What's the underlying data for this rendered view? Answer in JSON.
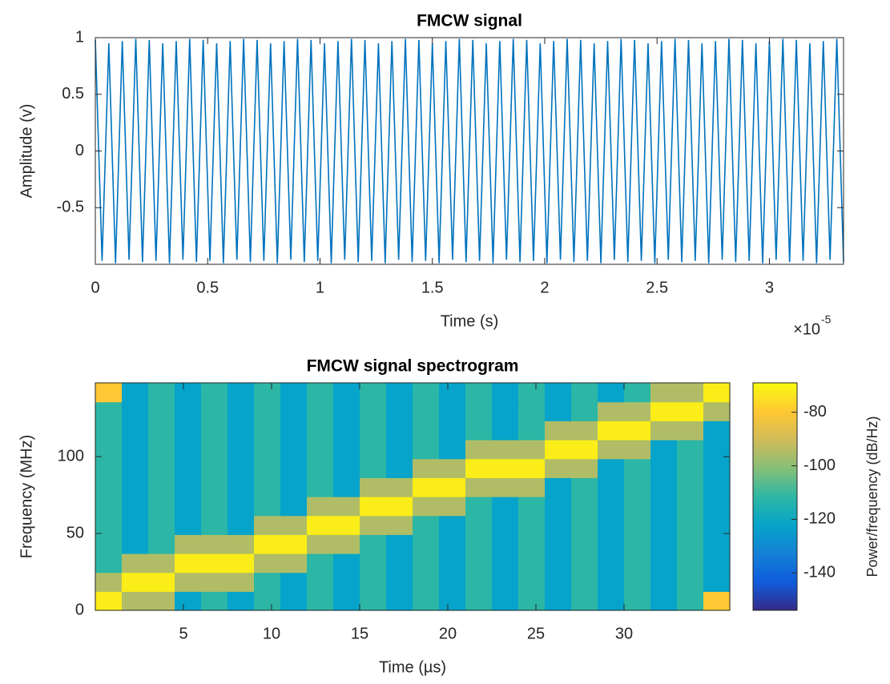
{
  "chart_data": [
    {
      "type": "line",
      "title": "FMCW signal",
      "x_label": "Time (s)",
      "y_label": "Amplitude (v)",
      "x_multiplier": {
        "base": "×10",
        "exponent": "-5"
      },
      "xlim": [
        0,
        3.33
      ],
      "xticks": [
        0,
        0.5,
        1,
        1.5,
        2,
        2.5,
        3
      ],
      "ylim": [
        -1,
        1
      ],
      "yticks": [
        -0.5,
        0,
        0.5,
        1
      ],
      "color": "#0072bd",
      "x": [
        0,
        0.03,
        0.06,
        0.09,
        0.12,
        0.15,
        0.18,
        0.21,
        0.24,
        0.27,
        0.3,
        0.33,
        0.36,
        0.39,
        0.42,
        0.45,
        0.48,
        0.51,
        0.54,
        0.57,
        0.6,
        0.63,
        0.66,
        0.69,
        0.72,
        0.75,
        0.78,
        0.81,
        0.84,
        0.87,
        0.9,
        0.93,
        0.96,
        0.99,
        1.02,
        1.05,
        1.08,
        1.11,
        1.14,
        1.17,
        1.2,
        1.23,
        1.26,
        1.29,
        1.32,
        1.35,
        1.38,
        1.41,
        1.44,
        1.47,
        1.5,
        1.53,
        1.56,
        1.59,
        1.62,
        1.65,
        1.68,
        1.71,
        1.74,
        1.77,
        1.8,
        1.83,
        1.86,
        1.89,
        1.92,
        1.95,
        1.98,
        2.01,
        2.04,
        2.07,
        2.1,
        2.13,
        2.16,
        2.19,
        2.22,
        2.25,
        2.28,
        2.31,
        2.34,
        2.37,
        2.4,
        2.43,
        2.46,
        2.49,
        2.52,
        2.55,
        2.58,
        2.61,
        2.64,
        2.67,
        2.7,
        2.73,
        2.76,
        2.79,
        2.82,
        2.85,
        2.88,
        2.91,
        2.94,
        2.97,
        3,
        3.03,
        3.06,
        3.09,
        3.12,
        3.15,
        3.18,
        3.21,
        3.24,
        3.27,
        3.3,
        3.33
      ],
      "values": [
        0.98,
        -0.97,
        0.95,
        -0.99,
        0.97,
        -0.96,
        0.99,
        -0.98,
        0.98,
        -0.97,
        0.95,
        -0.99,
        0.97,
        -0.96,
        0.99,
        -0.98,
        0.98,
        -0.97,
        0.95,
        -0.99,
        0.97,
        -0.96,
        0.99,
        -0.98,
        0.98,
        -0.97,
        0.95,
        -0.99,
        0.97,
        -0.96,
        0.99,
        -0.98,
        0.98,
        -0.97,
        0.95,
        -0.99,
        0.97,
        -0.96,
        0.99,
        -0.98,
        0.98,
        -0.97,
        0.95,
        -0.99,
        0.97,
        -0.96,
        0.99,
        -0.98,
        0.98,
        -0.97,
        0.95,
        -0.99,
        0.97,
        -0.96,
        0.99,
        -0.98,
        0.98,
        -0.97,
        0.95,
        -0.99,
        0.97,
        -0.96,
        0.99,
        -0.98,
        0.98,
        -0.97,
        0.95,
        -0.99,
        0.97,
        -0.96,
        0.99,
        -0.98,
        0.98,
        -0.97,
        0.95,
        -0.99,
        0.97,
        -0.96,
        0.99,
        -0.98,
        0.98,
        -0.97,
        0.95,
        -0.99,
        0.97,
        -0.96,
        0.99,
        -0.98,
        0.98,
        -0.97,
        0.95,
        -0.99,
        0.97,
        -0.96,
        0.99,
        -0.98,
        0.98,
        -0.97,
        0.95,
        -0.99,
        0.97,
        -0.96,
        0.99,
        -0.98,
        0.98,
        -0.97,
        0.95,
        -0.99,
        0.97,
        -0.96,
        0.99,
        -0.98
      ]
    },
    {
      "type": "heatmap",
      "title": "FMCW signal spectrogram",
      "x_label": "Time (µs)",
      "y_label": "Frequency (MHz)",
      "colorbar_label": "Power/frequency (dB/Hz)",
      "colormap": "parula",
      "clim": [
        -154,
        -69
      ],
      "cticks": [
        -140,
        -120,
        -100,
        -80
      ],
      "xlim": [
        0,
        36
      ],
      "xticks": [
        5,
        10,
        15,
        20,
        25,
        30
      ],
      "ylim": [
        0,
        148
      ],
      "yticks": [
        0,
        50,
        100
      ],
      "x": [
        0.75,
        2.25,
        3.75,
        5.25,
        6.75,
        8.25,
        9.75,
        11.25,
        12.75,
        14.25,
        15.75,
        17.25,
        18.75,
        20.25,
        21.75,
        23.25,
        24.75,
        26.25,
        27.75,
        29.25,
        30.75,
        32.25,
        33.75,
        35.25
      ],
      "y": [
        6.17,
        18.5,
        30.83,
        43.17,
        55.5,
        67.83,
        80.17,
        92.5,
        104.83,
        117.17,
        129.5,
        141.83
      ],
      "z": [
        [
          -72,
          -95,
          -95,
          -122,
          -112,
          -122,
          -112,
          -122,
          -112,
          -122,
          -112,
          -122,
          -112,
          -122,
          -112,
          -122,
          -112,
          -122,
          -112,
          -122,
          -112,
          -122,
          -112,
          -80
        ],
        [
          -95,
          -72,
          -72,
          -95,
          -95,
          -95,
          -112,
          -122,
          -112,
          -122,
          -112,
          -122,
          -112,
          -122,
          -112,
          -122,
          -112,
          -122,
          -112,
          -122,
          -112,
          -122,
          -112,
          -122
        ],
        [
          -112,
          -95,
          -95,
          -72,
          -72,
          -72,
          -95,
          -95,
          -112,
          -122,
          -112,
          -122,
          -112,
          -122,
          -112,
          -122,
          -112,
          -122,
          -112,
          -122,
          -112,
          -122,
          -112,
          -122
        ],
        [
          -112,
          -122,
          -112,
          -95,
          -95,
          -95,
          -72,
          -72,
          -95,
          -95,
          -112,
          -122,
          -112,
          -122,
          -112,
          -122,
          -112,
          -122,
          -112,
          -122,
          -112,
          -122,
          -112,
          -122
        ],
        [
          -112,
          -122,
          -112,
          -122,
          -112,
          -122,
          -95,
          -95,
          -72,
          -72,
          -95,
          -95,
          -112,
          -122,
          -112,
          -122,
          -112,
          -122,
          -112,
          -122,
          -112,
          -122,
          -112,
          -122
        ],
        [
          -112,
          -122,
          -112,
          -122,
          -112,
          -122,
          -112,
          -122,
          -95,
          -95,
          -72,
          -72,
          -95,
          -95,
          -112,
          -122,
          -112,
          -122,
          -112,
          -122,
          -112,
          -122,
          -112,
          -122
        ],
        [
          -112,
          -122,
          -112,
          -122,
          -112,
          -122,
          -112,
          -122,
          -112,
          -122,
          -95,
          -95,
          -72,
          -72,
          -95,
          -95,
          -95,
          -122,
          -112,
          -122,
          -112,
          -122,
          -112,
          -122
        ],
        [
          -112,
          -122,
          -112,
          -122,
          -112,
          -122,
          -112,
          -122,
          -112,
          -122,
          -112,
          -122,
          -95,
          -95,
          -72,
          -72,
          -72,
          -95,
          -95,
          -122,
          -112,
          -122,
          -112,
          -122
        ],
        [
          -112,
          -122,
          -112,
          -122,
          -112,
          -122,
          -112,
          -122,
          -112,
          -122,
          -112,
          -122,
          -112,
          -122,
          -95,
          -95,
          -95,
          -72,
          -72,
          -95,
          -95,
          -122,
          -112,
          -122
        ],
        [
          -112,
          -122,
          -112,
          -122,
          -112,
          -122,
          -112,
          -122,
          -112,
          -122,
          -112,
          -122,
          -112,
          -122,
          -112,
          -122,
          -112,
          -95,
          -95,
          -72,
          -72,
          -95,
          -95,
          -122
        ],
        [
          -112,
          -122,
          -112,
          -122,
          -112,
          -122,
          -112,
          -122,
          -112,
          -122,
          -112,
          -122,
          -112,
          -122,
          -112,
          -122,
          -112,
          -122,
          -112,
          -95,
          -95,
          -72,
          -72,
          -95
        ],
        [
          -80,
          -122,
          -112,
          -122,
          -112,
          -122,
          -112,
          -122,
          -112,
          -122,
          -112,
          -122,
          -112,
          -122,
          -112,
          -122,
          -112,
          -122,
          -112,
          -122,
          -112,
          -95,
          -95,
          -72
        ]
      ]
    }
  ]
}
